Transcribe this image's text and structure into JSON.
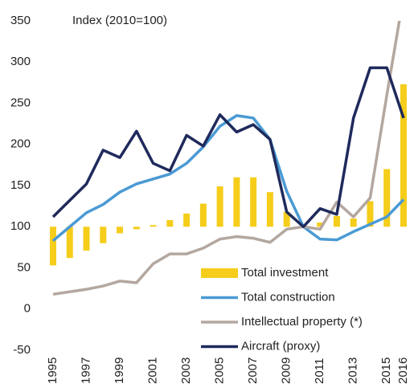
{
  "chart_data": {
    "type": "bar-line",
    "title": "Index (2010=100)",
    "categories": [
      "1995",
      null,
      "1997",
      null,
      "1999",
      null,
      "2001",
      null,
      "2003",
      null,
      "2005",
      null,
      "2007",
      null,
      "2009",
      null,
      "2011",
      null,
      "2013",
      null,
      "2015",
      "2016"
    ],
    "series": [
      {
        "name": "Total investment",
        "type": "bar",
        "color": "#f5cd1a",
        "values": [
          53,
          62,
          71,
          80,
          92,
          97,
          102,
          108,
          116,
          128,
          149,
          160,
          160,
          142,
          118,
          100,
          105,
          113,
          110,
          131,
          170,
          273
        ]
      },
      {
        "name": "Total construction",
        "type": "line",
        "color": "#4a9ad4",
        "values": [
          83,
          100,
          117,
          127,
          142,
          152,
          158,
          164,
          177,
          197,
          222,
          235,
          232,
          206,
          143,
          100,
          85,
          84,
          94,
          103,
          112,
          133
        ]
      },
      {
        "name": "Intellectual property (*)",
        "type": "line",
        "color": "#b3a79f",
        "values": [
          18,
          21,
          24,
          28,
          34,
          32,
          55,
          67,
          67,
          74,
          85,
          88,
          86,
          81,
          97,
          100,
          97,
          130,
          112,
          135,
          260,
          380
        ]
      },
      {
        "name": "Aircraft (proxy)",
        "type": "line",
        "color": "#1f2a5c",
        "values": [
          112,
          132,
          152,
          193,
          184,
          216,
          177,
          168,
          211,
          198,
          236,
          215,
          224,
          206,
          118,
          100,
          122,
          115,
          232,
          293,
          293,
          232
        ]
      }
    ],
    "ylim": [
      -50,
      350
    ],
    "yticks": [
      -50,
      0,
      50,
      100,
      150,
      200,
      250,
      300,
      350
    ],
    "grid": false
  }
}
